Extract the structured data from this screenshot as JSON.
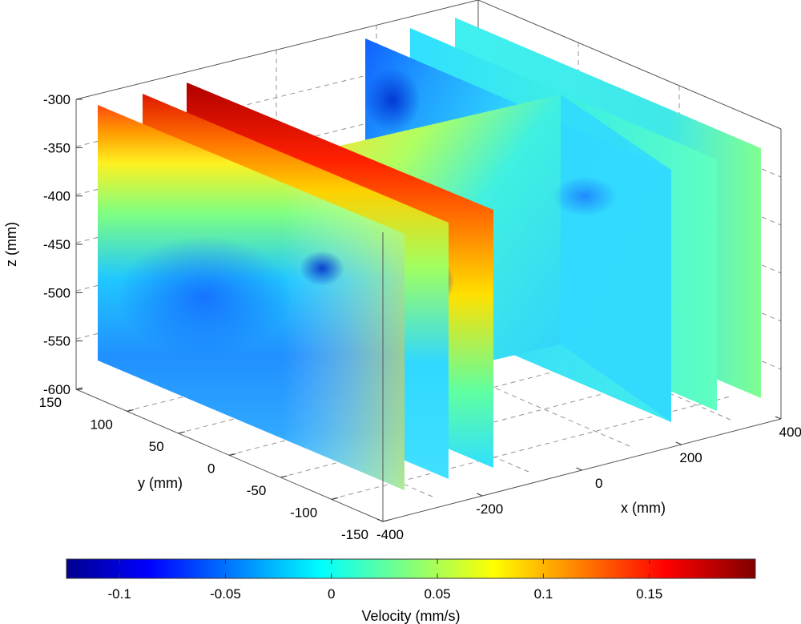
{
  "chart_data": {
    "type": "heatmap",
    "title": "",
    "xlabel": "x (mm)",
    "ylabel": "y (mm)",
    "zlabel": "z (mm)",
    "colorbar_label": "Velocity (mm/s)",
    "x_ticks": [
      "-400",
      "-200",
      "0",
      "200",
      "400"
    ],
    "y_ticks": [
      "150",
      "100",
      "50",
      "0",
      "-50",
      "-100",
      "-150"
    ],
    "z_ticks": [
      "-300",
      "-350",
      "-400",
      "-450",
      "-500",
      "-550",
      "-600"
    ],
    "colorbar_ticks": [
      "-0.1",
      "-0.05",
      "0",
      "0.05",
      "0.1",
      "0.15"
    ],
    "xlim": [
      -400,
      400
    ],
    "ylim": [
      -150,
      150
    ],
    "zlim": [
      -600,
      -300
    ],
    "color_range": [
      -0.125,
      0.2
    ],
    "colormap": "jet",
    "grid": true,
    "slices": [
      {
        "name": "slice-x-neg-400",
        "orientation": "yz",
        "x": -400
      },
      {
        "name": "slice-x-neg-300",
        "orientation": "yz",
        "x": -300
      },
      {
        "name": "slice-x-neg-200",
        "orientation": "yz",
        "x": -200
      },
      {
        "name": "slice-y-0",
        "orientation": "xz",
        "y": 0
      },
      {
        "name": "slice-x-200",
        "orientation": "yz",
        "x": 200
      },
      {
        "name": "slice-x-300",
        "orientation": "yz",
        "x": 300
      },
      {
        "name": "slice-x-400",
        "orientation": "yz",
        "x": 400
      }
    ]
  }
}
